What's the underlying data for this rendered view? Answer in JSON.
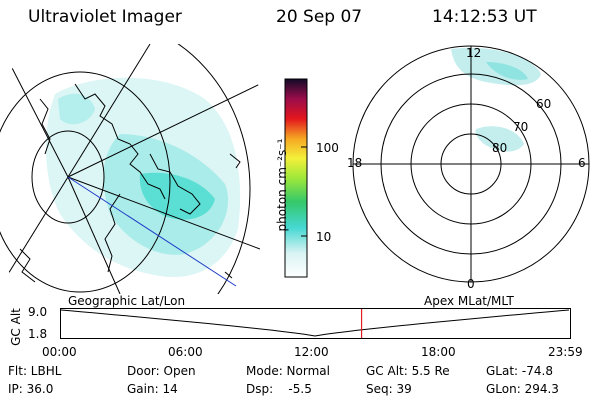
{
  "header": {
    "instrument": "Ultraviolet Imager",
    "date": "20 Sep 07",
    "time": "14:12:53 UT"
  },
  "colorbar": {
    "unit_label": "photon cm⁻²s⁻¹",
    "ticks": [
      "100",
      "10"
    ]
  },
  "polar": {
    "clock_labels": {
      "top": "12",
      "left": "18",
      "right": "6",
      "bottom": "0"
    },
    "lat_labels": [
      "60",
      "70",
      "80"
    ]
  },
  "orbit": {
    "left_title": "Geographic Lat/Lon",
    "right_title": "Apex MLat/MLT",
    "axis_label": "GC Alt",
    "y_ticks": [
      "9.0",
      "1.8"
    ],
    "x_ticks": [
      "00:00",
      "06:00",
      "12:00",
      "18:00",
      "23:59"
    ],
    "current_marker_hour": 14.2
  },
  "meta": {
    "row1": [
      "Flt: LBHL",
      "Door: Open",
      "Mode: Normal",
      "GC Alt: 5.5 Re",
      "GLat: -74.8"
    ],
    "row2": [
      "IP: 36.0",
      "Gain: 14",
      "Dsp:    -5.5",
      "Seq: 39",
      "GLon: 294.3"
    ]
  },
  "colors": {
    "aurora": "#8ee6e6",
    "aurora_bright": "#2fd6c9",
    "marker": "#e11d1d",
    "track": "#1e3cc8"
  }
}
